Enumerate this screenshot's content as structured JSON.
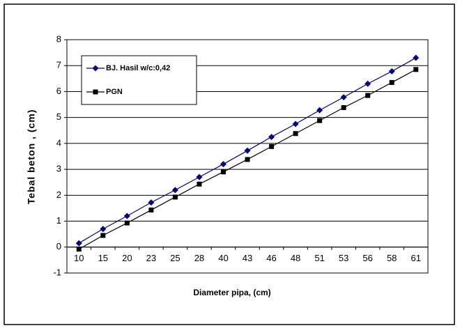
{
  "chart_data": {
    "type": "line",
    "x_label": "Diameter pipa, (cm)",
    "y_label": "Tebal beton , (cm)",
    "categories": [
      "10",
      "15",
      "20",
      "23",
      "25",
      "28",
      "40",
      "43",
      "46",
      "48",
      "51",
      "53",
      "56",
      "58",
      "61"
    ],
    "series": [
      {
        "name": "BJ. Hasil w/c:0,42",
        "color": "#000080",
        "marker": "diamond",
        "values": [
          0.15,
          0.7,
          1.2,
          1.72,
          2.2,
          2.7,
          3.2,
          3.72,
          4.25,
          4.75,
          5.28,
          5.78,
          6.3,
          6.78,
          7.3
        ]
      },
      {
        "name": "PGN",
        "color": "#000000",
        "marker": "square",
        "values": [
          -0.08,
          0.45,
          0.93,
          1.43,
          1.93,
          2.43,
          2.9,
          3.38,
          3.88,
          4.38,
          4.88,
          5.38,
          5.85,
          6.35,
          6.85
        ]
      }
    ],
    "ylim": [
      -1,
      8
    ],
    "yticks": [
      -1,
      0,
      1,
      2,
      3,
      4,
      5,
      6,
      7,
      8
    ],
    "grid": true,
    "legend": "upper-left"
  }
}
